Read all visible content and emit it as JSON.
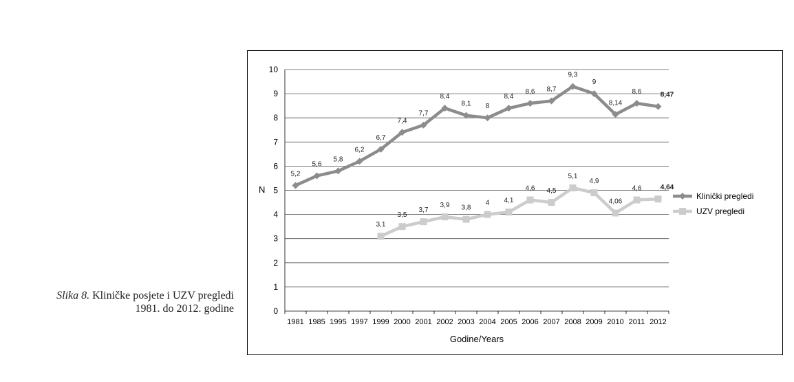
{
  "caption": {
    "figure": "Slika 8.",
    "line1": "Kliničke posjete i UZV pregledi",
    "line2": "1981. do 2012. godine"
  },
  "chart_data": {
    "type": "line",
    "xlabel": "Godine/Years",
    "ylabel": "N",
    "ylim": [
      0,
      10
    ],
    "yticks": [
      "0",
      "1",
      "2",
      "3",
      "4",
      "5",
      "6",
      "7",
      "8",
      "9",
      "10"
    ],
    "grid": true,
    "legend_position": "right",
    "categories": [
      "1981",
      "1985",
      "1995",
      "1997",
      "1999",
      "2000",
      "2001",
      "2002",
      "2003",
      "2004",
      "2005",
      "2006",
      "2007",
      "2008",
      "2009",
      "2010",
      "2011",
      "2012"
    ],
    "series": [
      {
        "name": "Klinički pregledi",
        "color": "#8c8c8c",
        "marker": "diamond",
        "values": [
          5.2,
          5.6,
          5.8,
          6.2,
          6.7,
          7.4,
          7.7,
          8.4,
          8.1,
          8.0,
          8.4,
          8.6,
          8.7,
          9.3,
          9.0,
          8.14,
          8.6,
          8.47
        ],
        "labels": [
          "5,2",
          "5,6",
          "5,8",
          "6,2",
          "6,7",
          "7,4",
          "7,7",
          "8,4",
          "8,1",
          "8",
          "8,4",
          "8,6",
          "8,7",
          "9,3",
          "9",
          "8,14",
          "8,6",
          "8,47"
        ]
      },
      {
        "name": "UZV pregledi",
        "color": "#cccccc",
        "marker": "square",
        "values": [
          null,
          null,
          null,
          null,
          3.1,
          3.5,
          3.7,
          3.9,
          3.8,
          4.0,
          4.1,
          4.6,
          4.5,
          5.1,
          4.9,
          4.06,
          4.6,
          4.64
        ],
        "labels": [
          null,
          null,
          null,
          null,
          "3,1",
          "3,5",
          "3,7",
          "3,9",
          "3,8",
          "4",
          "4,1",
          "4,6",
          "4,5",
          "5,1",
          "4,9",
          "4,06",
          "4,6",
          "4,64"
        ]
      }
    ]
  }
}
